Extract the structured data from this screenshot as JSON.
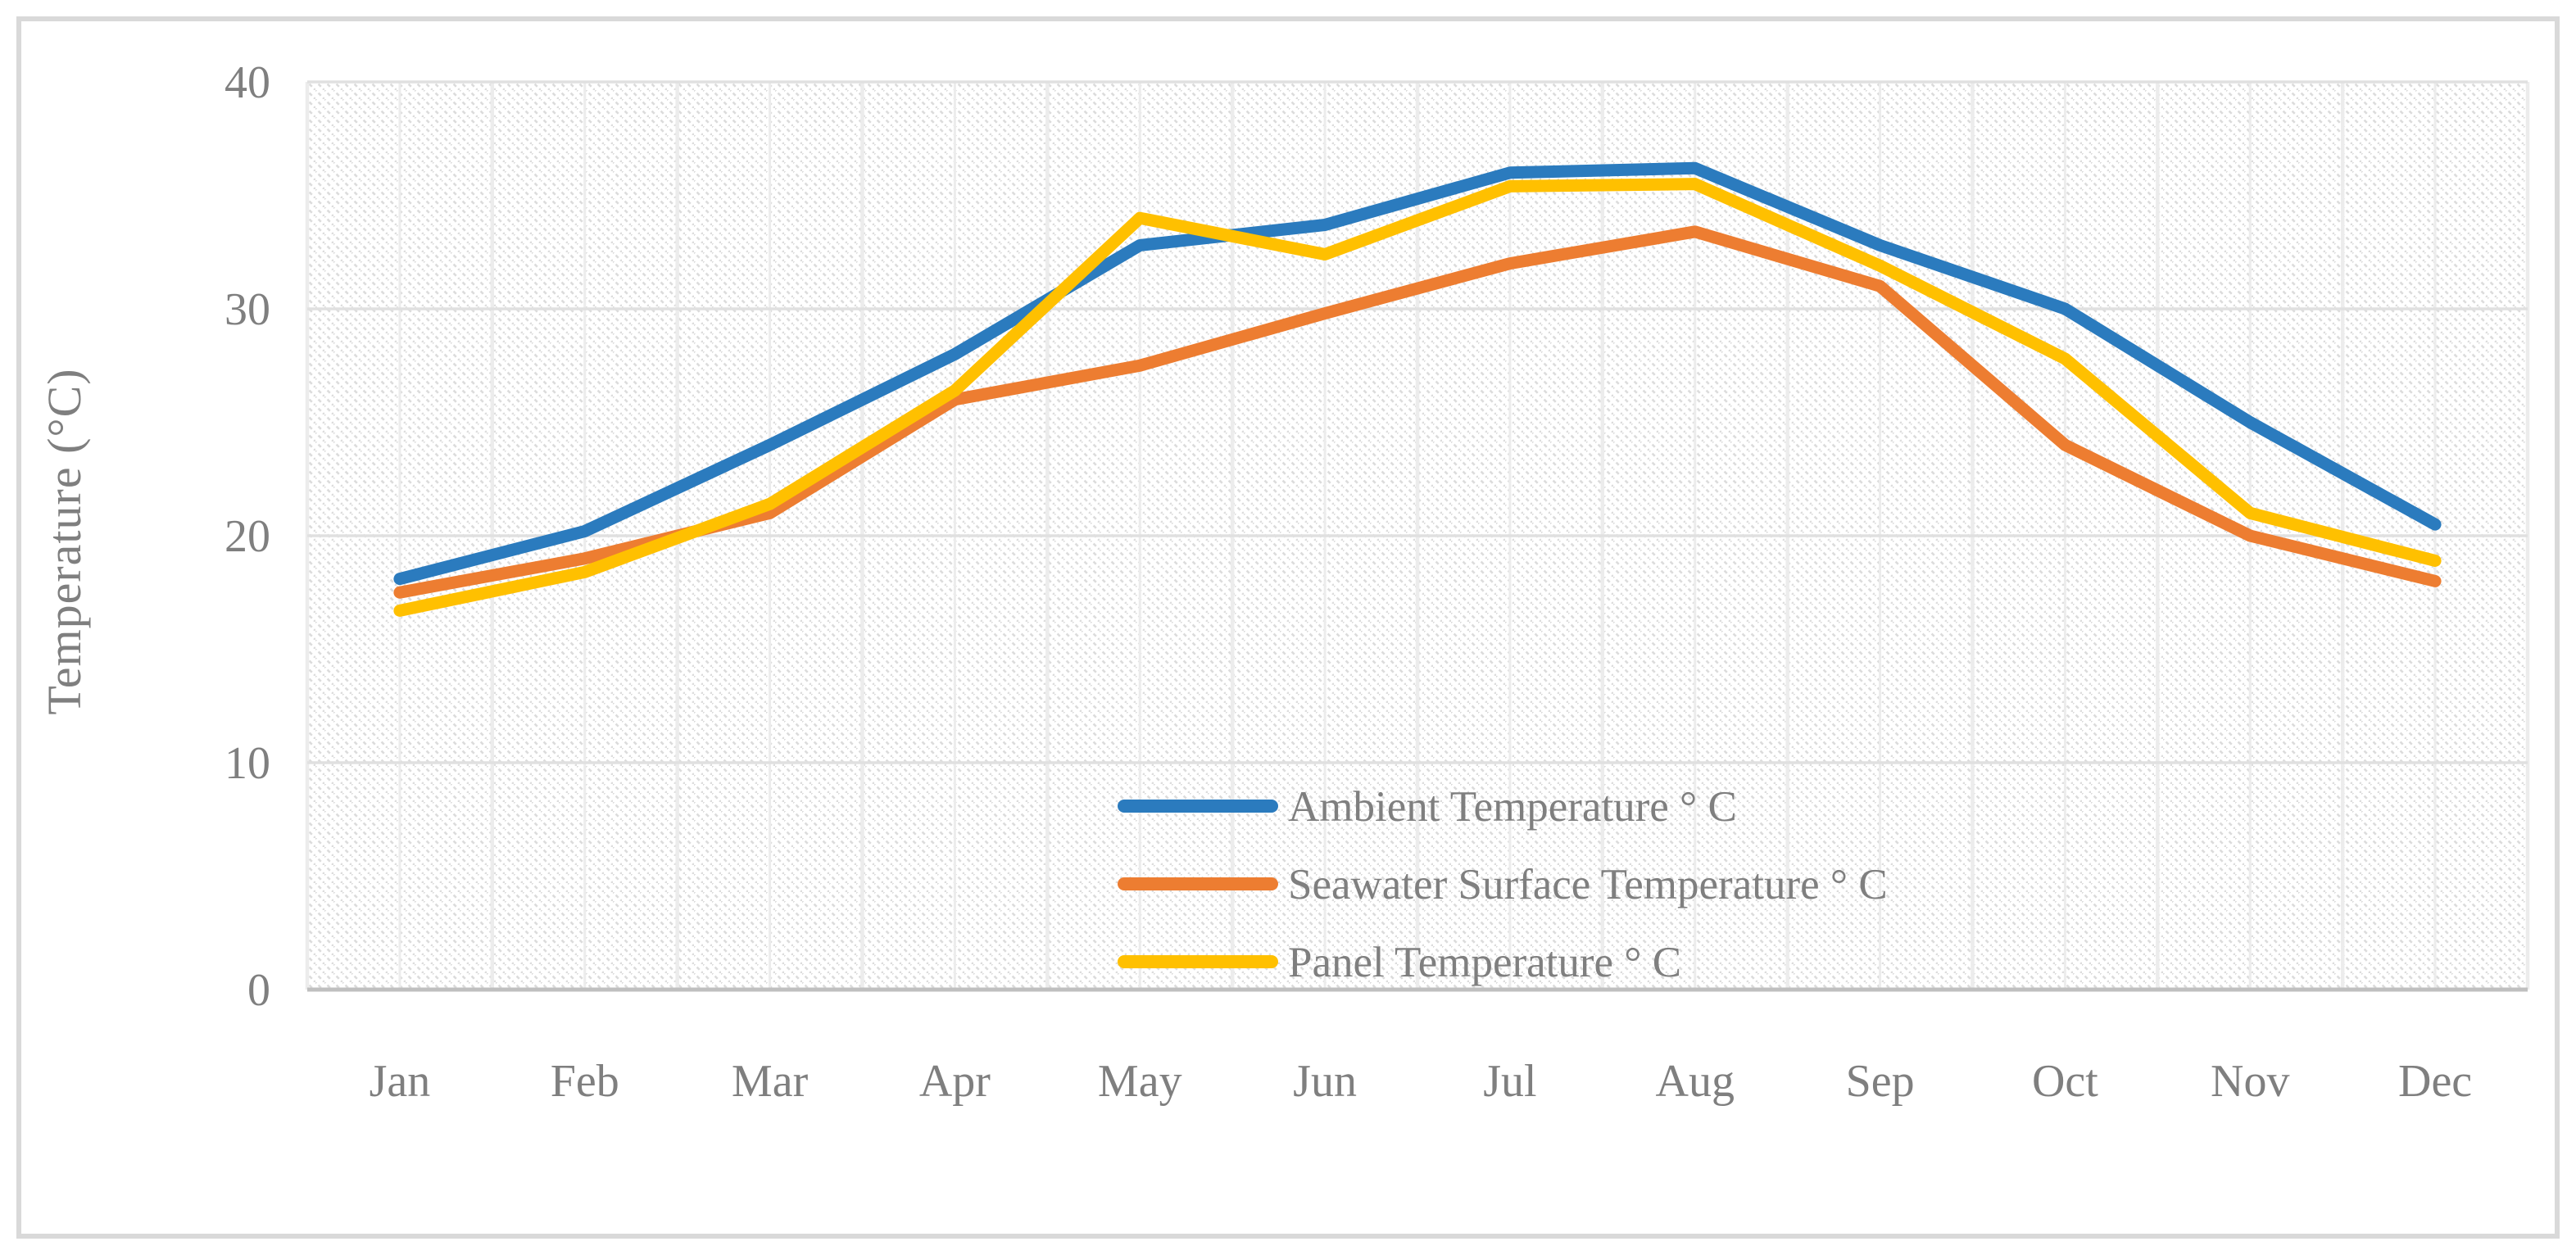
{
  "figure": {
    "background": "#FFFFFF",
    "border_color": "#D9D9D9"
  },
  "chart_data": {
    "type": "line",
    "title": "",
    "xlabel": "",
    "ylabel": "Temperature (°C)",
    "categories": [
      "Jan",
      "Feb",
      "Mar",
      "Apr",
      "May",
      "Jun",
      "Jul",
      "Aug",
      "Sep",
      "Oct",
      "Nov",
      "Dec"
    ],
    "yticks": [
      0,
      10,
      20,
      30,
      40
    ],
    "ylim": [
      0,
      40
    ],
    "grid": true,
    "plot_background": "diagonal-hatch",
    "legend_position": "inside-bottom-right",
    "series": [
      {
        "name": "Ambient Temperature ° C",
        "color": "#2B7BBE",
        "values": [
          18.1,
          20.2,
          24.0,
          28.0,
          32.8,
          33.7,
          36.0,
          36.2,
          32.8,
          30.0,
          25.0,
          20.5
        ]
      },
      {
        "name": "Seawater Surface Temperature ° C",
        "color": "#ED7D31",
        "values": [
          17.5,
          19.0,
          21.0,
          26.0,
          27.5,
          29.8,
          32.0,
          33.4,
          31.0,
          24.0,
          20.0,
          18.0
        ]
      },
      {
        "name": "Panel Temperature ° C",
        "color": "#FFC000",
        "values": [
          16.7,
          18.4,
          21.4,
          26.4,
          34.0,
          32.4,
          35.4,
          35.5,
          31.9,
          27.8,
          21.0,
          18.9
        ]
      }
    ],
    "styles": {
      "text_color": "#7F7F7F",
      "h_gridline_color": "#E0E0E0",
      "v_gridline_color": "#ECECEC",
      "axis_line_color": "#BFBFBF",
      "hatch_color": "#DCDCDC",
      "line_width": 15
    }
  }
}
